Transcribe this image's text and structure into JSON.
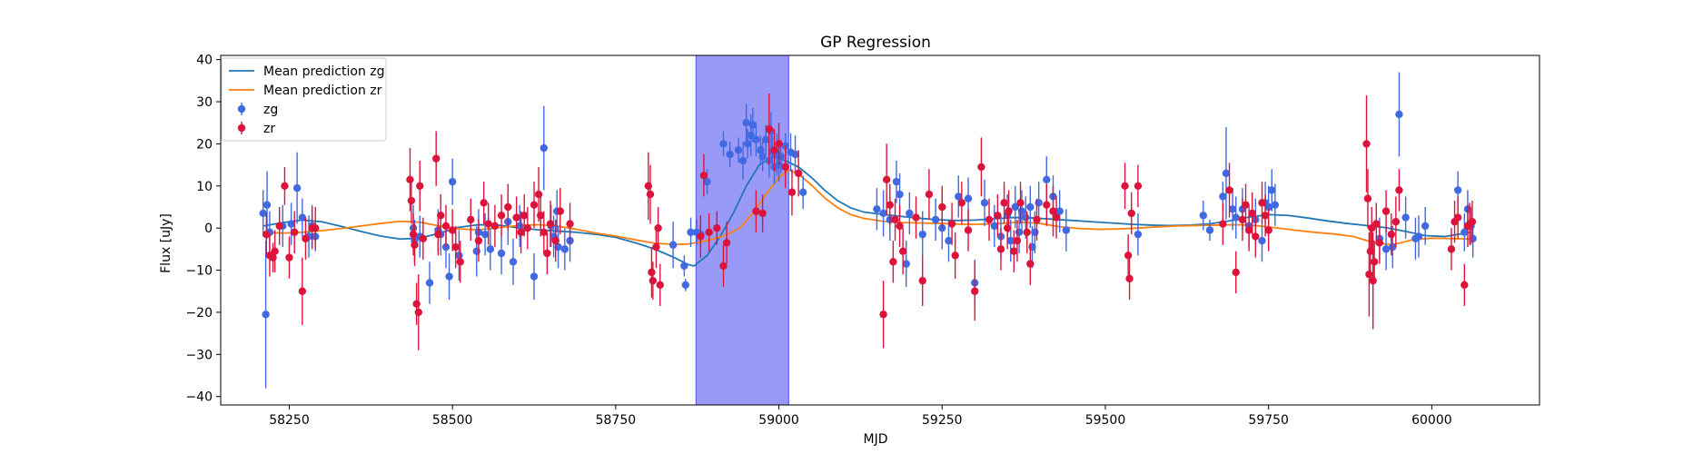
{
  "chart_data": {
    "type": "scatter",
    "title": "GP Regression",
    "xlabel": "MJD",
    "ylabel": "Flux [uJy]",
    "xlim": [
      58145,
      60165
    ],
    "ylim": [
      -42,
      41
    ],
    "xticks": [
      58250,
      58500,
      58750,
      59000,
      59250,
      59500,
      59750,
      60000
    ],
    "yticks": [
      -40,
      -30,
      -20,
      -10,
      0,
      10,
      20,
      30,
      40
    ],
    "grid": false,
    "legend_position": "top-left",
    "highlight_span": {
      "x0": 58873,
      "x1": 59015,
      "color": "#9999f8"
    },
    "series": [
      {
        "name": "Mean prediction zg",
        "kind": "line",
        "color": "#1f77b4",
        "x": [
          58210,
          58240,
          58270,
          58300,
          58330,
          58360,
          58390,
          58420,
          58450,
          58480,
          58510,
          58540,
          58570,
          58600,
          58630,
          58660,
          58690,
          58720,
          58750,
          58780,
          58810,
          58840,
          58860,
          58870,
          58890,
          58910,
          58930,
          58950,
          58970,
          58990,
          59010,
          59030,
          59050,
          59070,
          59090,
          59110,
          59130,
          59150,
          59180,
          59210,
          59240,
          59270,
          59300,
          59330,
          59360,
          59390,
          59420,
          59450,
          59480,
          59510,
          59540,
          59570,
          59600,
          59630,
          59660,
          59690,
          59720,
          59750,
          59780,
          59810,
          59840,
          59870,
          59900,
          59930,
          59960,
          59990,
          60020,
          60060
        ],
        "y": [
          0.5,
          1.3,
          1.9,
          1.5,
          0.4,
          -0.8,
          -1.9,
          -2.6,
          -2.4,
          -1.2,
          0.2,
          0.8,
          0.7,
          0.1,
          -0.4,
          -0.7,
          -1.0,
          -1.5,
          -2.2,
          -3.5,
          -5.0,
          -7.0,
          -8.6,
          -9.0,
          -6.5,
          -2.0,
          3.5,
          10.0,
          15.0,
          17.0,
          16.0,
          14.5,
          12.0,
          9.0,
          6.5,
          4.8,
          3.8,
          3.4,
          2.9,
          2.4,
          2.0,
          1.8,
          1.9,
          2.2,
          2.5,
          2.4,
          2.1,
          1.8,
          1.5,
          1.2,
          0.9,
          0.7,
          0.6,
          0.7,
          1.0,
          1.7,
          2.6,
          3.2,
          3.0,
          2.4,
          1.7,
          1.1,
          0.6,
          0.1,
          -0.8,
          -1.8,
          -2.0,
          -1.0
        ]
      },
      {
        "name": "Mean prediction zr",
        "kind": "line",
        "color": "#ff7f0e",
        "x": [
          58210,
          58240,
          58270,
          58300,
          58330,
          58360,
          58390,
          58420,
          58450,
          58480,
          58510,
          58540,
          58570,
          58600,
          58630,
          58660,
          58690,
          58720,
          58750,
          58780,
          58810,
          58840,
          58860,
          58880,
          58900,
          58920,
          58940,
          58960,
          58980,
          59000,
          59015,
          59030,
          59050,
          59070,
          59090,
          59110,
          59130,
          59160,
          59190,
          59220,
          59250,
          59280,
          59310,
          59340,
          59370,
          59400,
          59430,
          59460,
          59490,
          59520,
          59550,
          59580,
          59610,
          59640,
          59670,
          59700,
          59730,
          59760,
          59790,
          59820,
          59850,
          59880,
          59910,
          59940,
          59970,
          60000,
          60030,
          60060
        ],
        "y": [
          -1.0,
          -1.2,
          -1.0,
          -0.6,
          -0.1,
          0.5,
          1.1,
          1.6,
          1.4,
          0.5,
          -0.2,
          -0.4,
          0.1,
          0.6,
          0.8,
          0.5,
          -0.3,
          -1.2,
          -1.9,
          -2.8,
          -3.6,
          -3.9,
          -3.8,
          -3.3,
          -2.6,
          -1.6,
          0.0,
          3.5,
          8.0,
          12.0,
          13.8,
          12.8,
          10.2,
          7.2,
          4.8,
          3.2,
          2.3,
          1.6,
          1.3,
          1.2,
          1.1,
          0.9,
          0.9,
          1.1,
          1.4,
          1.1,
          0.3,
          -0.1,
          -0.3,
          -0.2,
          0.0,
          0.3,
          0.5,
          0.6,
          0.7,
          0.8,
          0.6,
          0.1,
          -0.5,
          -1.0,
          -1.4,
          -2.0,
          -3.4,
          -4.0,
          -2.8,
          -2.4,
          -2.5,
          -2.6
        ]
      },
      {
        "name": "zg",
        "kind": "errorbar",
        "color": "#4169e1",
        "x": [
          58210,
          58214,
          58216,
          58220,
          58240,
          58253,
          58262,
          58270,
          58280,
          58285,
          58290,
          58440,
          58442,
          58450,
          58465,
          58478,
          58482,
          58490,
          58495,
          58500,
          58510,
          58537,
          58540,
          58550,
          58558,
          58575,
          58585,
          58593,
          58603,
          58625,
          58640,
          58651,
          58655,
          58660,
          58662,
          58672,
          58680,
          58838,
          58855,
          58857,
          58865,
          58874,
          58880,
          58890,
          58915,
          58925,
          58938,
          58945,
          58950,
          58952,
          58957,
          58960,
          58965,
          58972,
          58975,
          58980,
          58985,
          58988,
          58990,
          58993,
          58997,
          59000,
          59003,
          59010,
          59018,
          59025,
          59037,
          59150,
          59160,
          59170,
          59180,
          59185,
          59195,
          59200,
          59220,
          59240,
          59250,
          59260,
          59275,
          59290,
          59300,
          59315,
          59330,
          59340,
          59350,
          59355,
          59362,
          59368,
          59372,
          59378,
          59385,
          59388,
          59392,
          59398,
          59410,
          59420,
          59430,
          59440,
          59550,
          59650,
          59660,
          59680,
          59685,
          59695,
          59700,
          59710,
          59720,
          59730,
          59740,
          59745,
          59750,
          59755,
          59760,
          59920,
          59930,
          59940,
          59950,
          59960,
          59975,
          59980,
          59990,
          60040,
          60050,
          60055,
          60060,
          60063
        ],
        "y": [
          3.5,
          -20.5,
          5.5,
          -1.0,
          0.5,
          1.0,
          9.5,
          2.5,
          -2.0,
          0.5,
          -2.0,
          0.0,
          -3.0,
          -2.0,
          -13.0,
          -0.5,
          -1.5,
          -4.5,
          -11.5,
          11.0,
          -6.5,
          -5.5,
          -1.0,
          -1.5,
          -5.0,
          -6.0,
          1.5,
          -8.0,
          0.5,
          -11.5,
          19.0,
          0.5,
          -2.0,
          4.0,
          -4.5,
          -5.0,
          -3.0,
          -4.0,
          -9.0,
          -13.5,
          -1.0,
          -1.0,
          -1.5,
          11.0,
          20.0,
          17.5,
          18.5,
          16.0,
          25.0,
          20.0,
          22.0,
          24.5,
          21.0,
          18.5,
          17.0,
          21.0,
          16.0,
          23.0,
          18.0,
          14.5,
          17.5,
          15.0,
          17.0,
          19.5,
          18.0,
          17.5,
          8.5,
          4.5,
          3.5,
          2.0,
          11.0,
          8.0,
          -8.5,
          3.5,
          -1.5,
          2.0,
          0.0,
          -3.0,
          7.5,
          7.0,
          -13.0,
          6.0,
          0.5,
          -2.0,
          3.0,
          -3.0,
          5.0,
          -1.0,
          4.0,
          2.5,
          5.0,
          -4.5,
          -1.0,
          6.0,
          11.5,
          7.5,
          4.0,
          -0.5,
          -1.5,
          3.0,
          -0.5,
          7.5,
          13.0,
          4.5,
          2.5,
          4.5,
          0.5,
          2.0,
          -3.0,
          6.0,
          5.0,
          9.0,
          5.5,
          -2.5,
          -5.0,
          -4.5,
          27.0,
          2.5,
          -2.5,
          -2.0,
          0.5,
          9.0,
          -1.0,
          4.5,
          0.5,
          -2.5
        ],
        "err": [
          5.5,
          17.5,
          8.0,
          5.0,
          5.0,
          5.0,
          8.5,
          4.5,
          5.0,
          5.0,
          3.5,
          5.5,
          5.0,
          5.0,
          5.0,
          5.0,
          5.0,
          5.0,
          5.5,
          5.5,
          6.0,
          6.0,
          5.5,
          5.0,
          5.0,
          5.0,
          5.5,
          5.5,
          5.0,
          5.5,
          10.0,
          5.0,
          5.0,
          5.0,
          5.0,
          5.0,
          5.0,
          5.5,
          2.5,
          1.5,
          3.5,
          3.0,
          3.0,
          3.0,
          3.0,
          3.0,
          3.0,
          4.5,
          4.5,
          3.5,
          5.0,
          4.0,
          4.0,
          3.5,
          3.5,
          3.5,
          4.0,
          4.5,
          4.0,
          4.0,
          5.0,
          4.0,
          4.0,
          3.0,
          4.5,
          4.5,
          4.0,
          5.0,
          5.5,
          5.0,
          5.0,
          5.0,
          5.5,
          5.0,
          5.5,
          5.0,
          5.0,
          5.0,
          5.0,
          5.0,
          5.5,
          5.5,
          5.0,
          5.0,
          5.0,
          5.0,
          5.0,
          5.0,
          5.0,
          5.0,
          5.0,
          5.0,
          5.0,
          5.0,
          5.5,
          5.0,
          5.0,
          5.0,
          5.0,
          3.5,
          2.5,
          3.5,
          11.0,
          5.0,
          5.0,
          5.0,
          5.0,
          5.0,
          5.0,
          5.0,
          5.0,
          5.0,
          5.0,
          5.0,
          5.0,
          5.0,
          10.0,
          5.0,
          5.0,
          5.0,
          4.5,
          4.5,
          4.5,
          4.5,
          4.5,
          4.5
        ],
        "legend_marker": "point"
      },
      {
        "name": "zr",
        "kind": "errorbar",
        "color": "#dc143c",
        "x": [
          58215,
          58220,
          58225,
          58228,
          58235,
          58243,
          58250,
          58258,
          58270,
          58275,
          58285,
          58290,
          58435,
          58437,
          58440,
          58442,
          58445,
          58448,
          58450,
          58455,
          58475,
          58478,
          58482,
          58490,
          58500,
          58505,
          58512,
          58528,
          58540,
          58548,
          58555,
          58565,
          58575,
          58585,
          58598,
          58605,
          58610,
          58615,
          58625,
          58632,
          58635,
          58640,
          58645,
          58650,
          58658,
          58665,
          58680,
          58800,
          58803,
          58805,
          58807,
          58812,
          58815,
          58818,
          58880,
          58885,
          58893,
          58905,
          58915,
          58920,
          58965,
          58975,
          58985,
          58993,
          59000,
          59010,
          59020,
          59030,
          59160,
          59165,
          59170,
          59175,
          59178,
          59185,
          59190,
          59210,
          59220,
          59230,
          59250,
          59265,
          59270,
          59280,
          59290,
          59300,
          59310,
          59322,
          59335,
          59340,
          59345,
          59350,
          59352,
          59360,
          59365,
          59370,
          59380,
          59385,
          59395,
          59410,
          59420,
          59425,
          59530,
          59535,
          59537,
          59540,
          59550,
          59680,
          59690,
          59700,
          59710,
          59715,
          59720,
          59725,
          59730,
          59740,
          59745,
          59750,
          59900,
          59902,
          59904,
          59906,
          59908,
          59910,
          59912,
          59915,
          59920,
          59930,
          59938,
          59945,
          59950,
          60030,
          60035,
          60040,
          60050,
          60055,
          60058,
          60062
        ],
        "y": [
          -1.5,
          -6.5,
          -7.0,
          -5.5,
          0.5,
          10.0,
          -7.0,
          -1.0,
          -15.0,
          -2.5,
          0.0,
          0.0,
          11.5,
          6.5,
          -1.5,
          -4.0,
          -18.0,
          -20.0,
          10.0,
          -2.5,
          16.5,
          -1.5,
          3.0,
          0.5,
          -0.5,
          -4.5,
          -8.0,
          2.0,
          -3.0,
          6.0,
          1.0,
          0.5,
          3.0,
          5.0,
          2.5,
          -1.0,
          3.0,
          0.0,
          5.5,
          8.0,
          3.0,
          -1.0,
          -6.0,
          1.0,
          -3.0,
          4.0,
          1.0,
          10.0,
          8.0,
          -10.5,
          -12.5,
          -4.5,
          0.0,
          -13.5,
          -2.0,
          12.5,
          -1.0,
          0.0,
          -9.0,
          -3.5,
          4.0,
          3.5,
          23.5,
          18.5,
          20.0,
          14.5,
          8.5,
          13.0,
          -20.5,
          11.5,
          5.5,
          -8.0,
          2.0,
          0.5,
          -5.5,
          2.5,
          -12.5,
          8.0,
          5.0,
          1.0,
          -6.5,
          6.0,
          -0.5,
          -15.0,
          14.5,
          2.0,
          3.0,
          -5.0,
          6.0,
          0.0,
          4.0,
          -5.5,
          -3.0,
          6.0,
          -1.0,
          -8.5,
          2.0,
          5.5,
          4.0,
          2.5,
          10.0,
          -6.5,
          -12.0,
          3.5,
          10.0,
          1.0,
          9.0,
          -10.5,
          2.0,
          5.5,
          -0.5,
          3.5,
          -2.0,
          6.0,
          3.0,
          -0.5,
          20.0,
          7.0,
          -11.0,
          -5.5,
          0.0,
          -12.5,
          -8.0,
          1.0,
          -3.5,
          4.0,
          -1.5,
          1.5,
          9.0,
          -5.0,
          1.5,
          2.5,
          -13.5,
          0.5,
          1.0,
          1.5
        ],
        "err": [
          5.0,
          5.0,
          3.5,
          5.0,
          4.5,
          4.5,
          5.0,
          5.0,
          8.0,
          5.0,
          5.0,
          5.0,
          7.5,
          5.5,
          5.0,
          5.0,
          5.0,
          9.0,
          6.0,
          5.0,
          6.5,
          5.0,
          5.0,
          5.0,
          5.0,
          5.0,
          5.0,
          5.0,
          5.0,
          5.0,
          5.0,
          5.0,
          5.0,
          5.5,
          5.0,
          5.0,
          5.0,
          5.0,
          5.5,
          6.5,
          5.0,
          5.0,
          5.0,
          5.5,
          5.0,
          5.5,
          5.0,
          8.0,
          7.0,
          6.0,
          4.5,
          5.0,
          5.0,
          5.0,
          5.0,
          5.0,
          4.5,
          4.0,
          5.0,
          5.0,
          5.0,
          4.5,
          8.5,
          5.0,
          5.0,
          5.0,
          5.5,
          5.5,
          8.0,
          8.5,
          5.0,
          5.0,
          5.0,
          5.0,
          5.5,
          5.0,
          6.0,
          6.0,
          5.0,
          5.0,
          5.5,
          5.0,
          5.0,
          7.0,
          7.0,
          5.0,
          5.0,
          5.0,
          5.0,
          5.0,
          5.0,
          5.0,
          5.0,
          5.0,
          5.0,
          5.0,
          5.0,
          5.0,
          6.0,
          5.0,
          5.5,
          5.0,
          5.0,
          5.0,
          5.0,
          5.0,
          6.5,
          5.0,
          5.0,
          5.0,
          5.0,
          5.0,
          5.0,
          5.0,
          5.0,
          5.0,
          11.5,
          7.0,
          10.0,
          6.0,
          5.0,
          11.5,
          5.0,
          5.0,
          5.0,
          5.0,
          5.0,
          6.0,
          5.0,
          5.0,
          5.0,
          5.0,
          5.0,
          5.0,
          5.0,
          5.0
        ],
        "legend_marker": "point"
      }
    ]
  }
}
